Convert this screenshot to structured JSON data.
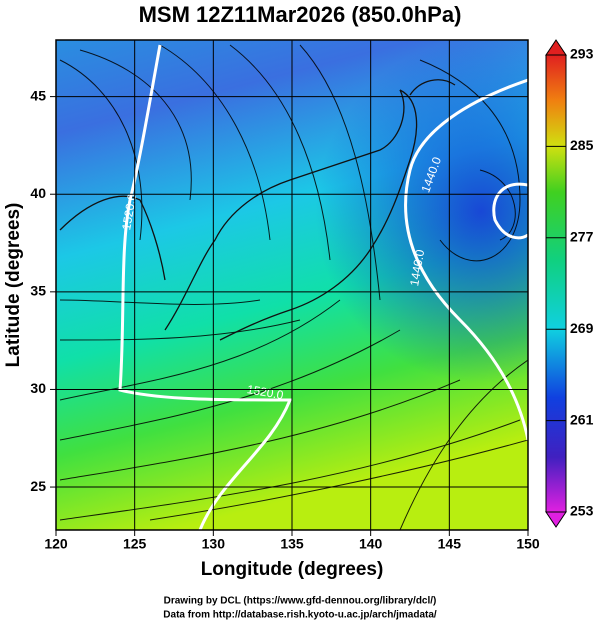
{
  "chart_data": {
    "type": "map",
    "title": "MSM 12Z11Mar2026 (850.0hPa)",
    "xlabel": "Longitude (degrees)",
    "ylabel": "Latitude  (degrees)",
    "xlim": [
      120,
      150
    ],
    "ylim": [
      22.8,
      47.9
    ],
    "xticks": [
      120,
      125,
      130,
      135,
      140,
      145,
      150
    ],
    "yticks": [
      25,
      30,
      35,
      40,
      45
    ],
    "grid": true,
    "colorbar": {
      "lim": [
        253,
        293
      ],
      "ticks": [
        253,
        261,
        269,
        277,
        285,
        293
      ]
    },
    "contour_labels": [
      "1520.0",
      "1520.0",
      "1440.0",
      "1440.0"
    ],
    "credits": [
      "Drawing by DCL (https://www.gfd-dennou.org/library/dcl/)",
      "Data from http://database.rish.kyoto-u.ac.jp/arch/jmadata/"
    ]
  }
}
